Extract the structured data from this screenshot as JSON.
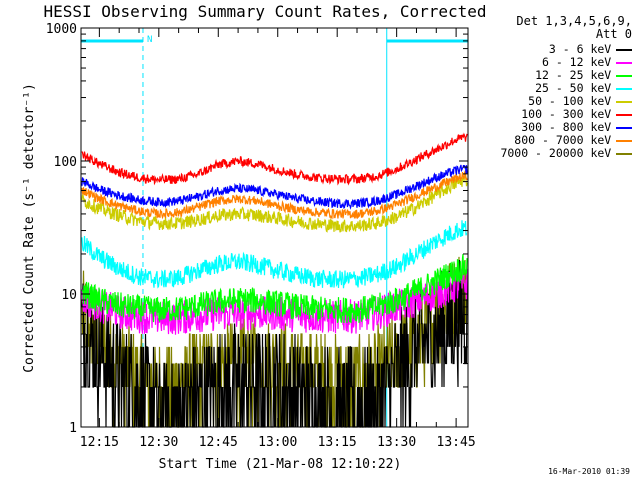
{
  "chart_data": {
    "type": "line",
    "title": "HESSI Observing Summary Count Rates, Corrected",
    "xlabel": "Start Time (21-Mar-08 12:10:22)",
    "ylabel": "Corrected Count Rate (s⁻¹ detector⁻¹)",
    "yscale": "log",
    "ylim": [
      1,
      1000
    ],
    "xlim": [
      "12:10:22",
      "13:48:00"
    ],
    "x_ticks": [
      "12:15",
      "12:30",
      "12:45",
      "13:00",
      "13:15",
      "13:30",
      "13:45"
    ],
    "y_ticks": [
      "1",
      "10",
      "100",
      "1000"
    ],
    "legend_title": [
      "Det 1,3,4,5,6,9,",
      "Att 0"
    ],
    "legend_position": "right",
    "night_marker": "N",
    "night_intervals": [
      [
        "12:10:22",
        "12:26:00"
      ],
      [
        "13:27:30",
        "13:48:00"
      ]
    ],
    "series": [
      {
        "name": "3 - 6 keV",
        "color": "#000000",
        "times": [
          "12:10",
          "12:15",
          "12:20",
          "12:25",
          "12:30",
          "12:35",
          "12:40",
          "12:45",
          "12:50",
          "12:55",
          "13:00",
          "13:05",
          "13:10",
          "13:15",
          "13:20",
          "13:25",
          "13:30",
          "13:35",
          "13:40",
          "13:45",
          "13:47"
        ],
        "values": [
          6,
          3.5,
          2.5,
          1.8,
          1.3,
          1.3,
          1.7,
          2.0,
          2.1,
          2.1,
          2.0,
          1.8,
          1.5,
          1.4,
          1.3,
          1.5,
          2.5,
          3.8,
          5.0,
          6.5,
          7
        ]
      },
      {
        "name": "6 - 12 keV",
        "color": "#ff00ff",
        "times": [
          "12:10",
          "12:15",
          "12:20",
          "12:25",
          "12:30",
          "12:35",
          "12:40",
          "12:45",
          "12:50",
          "12:55",
          "13:00",
          "13:05",
          "13:10",
          "13:15",
          "13:20",
          "13:25",
          "13:30",
          "13:35",
          "13:40",
          "13:45",
          "13:47"
        ],
        "values": [
          9.5,
          8.2,
          7.3,
          6.8,
          6.6,
          6.6,
          6.9,
          7.1,
          7.2,
          7.2,
          7.1,
          6.9,
          6.8,
          6.7,
          6.8,
          7.2,
          8.0,
          9.0,
          10.2,
          11.5,
          12
        ]
      },
      {
        "name": "12 - 25 keV",
        "color": "#00ff00",
        "times": [
          "12:10",
          "12:15",
          "12:20",
          "12:25",
          "12:30",
          "12:35",
          "12:40",
          "12:45",
          "12:50",
          "12:55",
          "13:00",
          "13:05",
          "13:10",
          "13:15",
          "13:20",
          "13:25",
          "13:30",
          "13:35",
          "13:40",
          "13:45",
          "13:47"
        ],
        "values": [
          10.5,
          9.0,
          8.2,
          7.8,
          7.6,
          7.7,
          8.2,
          8.7,
          9.0,
          8.9,
          8.5,
          8.0,
          7.7,
          7.6,
          7.6,
          8.0,
          9.0,
          10.5,
          12.5,
          15,
          16
        ]
      },
      {
        "name": "25 - 50 keV",
        "color": "#00ffff",
        "times": [
          "12:10",
          "12:15",
          "12:20",
          "12:25",
          "12:30",
          "12:35",
          "12:40",
          "12:45",
          "12:50",
          "12:55",
          "13:00",
          "13:05",
          "13:10",
          "13:15",
          "13:20",
          "13:25",
          "13:30",
          "13:35",
          "13:40",
          "13:45",
          "13:47"
        ],
        "values": [
          25,
          19,
          15.5,
          13.5,
          12.8,
          13.2,
          15,
          16.8,
          17.5,
          16.5,
          15,
          13.8,
          13,
          12.8,
          13,
          14,
          16,
          20,
          25,
          30,
          31
        ]
      },
      {
        "name": "50 - 100 keV",
        "color": "#cccc00",
        "times": [
          "12:10",
          "12:15",
          "12:20",
          "12:25",
          "12:30",
          "12:35",
          "12:40",
          "12:45",
          "12:50",
          "12:55",
          "13:00",
          "13:05",
          "13:10",
          "13:15",
          "13:20",
          "13:25",
          "13:30",
          "13:35",
          "13:40",
          "13:45",
          "13:47"
        ],
        "values": [
          52,
          44,
          39,
          35.5,
          34,
          34,
          36,
          39,
          40,
          39,
          37,
          35,
          33.5,
          32.5,
          32.5,
          34,
          38,
          45,
          56,
          68,
          72
        ]
      },
      {
        "name": "100 - 300 keV",
        "color": "#ff0000",
        "times": [
          "12:10",
          "12:15",
          "12:20",
          "12:25",
          "12:30",
          "12:35",
          "12:40",
          "12:45",
          "12:50",
          "12:55",
          "13:00",
          "13:05",
          "13:10",
          "13:15",
          "13:20",
          "13:25",
          "13:30",
          "13:35",
          "13:40",
          "13:45",
          "13:47"
        ],
        "values": [
          115,
          95,
          82,
          75,
          72,
          73,
          80,
          94,
          100,
          95,
          86,
          79,
          75,
          73,
          73,
          77,
          87,
          103,
          122,
          145,
          150
        ]
      },
      {
        "name": "300 - 800 keV",
        "color": "#0000ff",
        "times": [
          "12:10",
          "12:15",
          "12:20",
          "12:25",
          "12:30",
          "12:35",
          "12:40",
          "12:45",
          "12:50",
          "12:55",
          "13:00",
          "13:05",
          "13:10",
          "13:15",
          "13:20",
          "13:25",
          "13:30",
          "13:35",
          "13:40",
          "13:45",
          "13:47"
        ],
        "values": [
          72,
          61,
          55,
          51,
          49,
          50,
          54,
          60,
          62,
          60,
          56,
          52,
          49.5,
          48,
          48,
          50,
          56,
          65,
          75,
          85,
          87
        ]
      },
      {
        "name": "800 - 7000 keV",
        "color": "#ff8000",
        "times": [
          "12:10",
          "12:15",
          "12:20",
          "12:25",
          "12:30",
          "12:35",
          "12:40",
          "12:45",
          "12:50",
          "12:55",
          "13:00",
          "13:05",
          "13:10",
          "13:15",
          "13:20",
          "13:25",
          "13:30",
          "13:35",
          "13:40",
          "13:45",
          "13:47"
        ],
        "values": [
          62,
          52,
          46,
          42,
          40,
          41,
          45,
          50,
          52,
          50,
          46,
          43,
          41,
          40,
          40,
          42,
          47,
          55,
          64,
          74,
          77
        ]
      },
      {
        "name": "7000 - 20000 keV",
        "color": "#808000",
        "times": [
          "12:10",
          "12:15",
          "12:20",
          "12:25",
          "12:30",
          "12:35",
          "12:40",
          "12:45",
          "12:50",
          "12:55",
          "13:00",
          "13:05",
          "13:10",
          "13:15",
          "13:20",
          "13:25",
          "13:30",
          "13:35",
          "13:40",
          "13:45",
          "13:47"
        ],
        "values": [
          7.5,
          4.2,
          3.0,
          2.4,
          2.0,
          2.1,
          2.5,
          2.8,
          3.0,
          3.0,
          2.9,
          2.6,
          2.4,
          2.2,
          2.2,
          2.5,
          3.3,
          4.5,
          6.5,
          9.5,
          10.5
        ]
      }
    ]
  },
  "footer": {
    "timestamp": "16-Mar-2010 01:39"
  }
}
